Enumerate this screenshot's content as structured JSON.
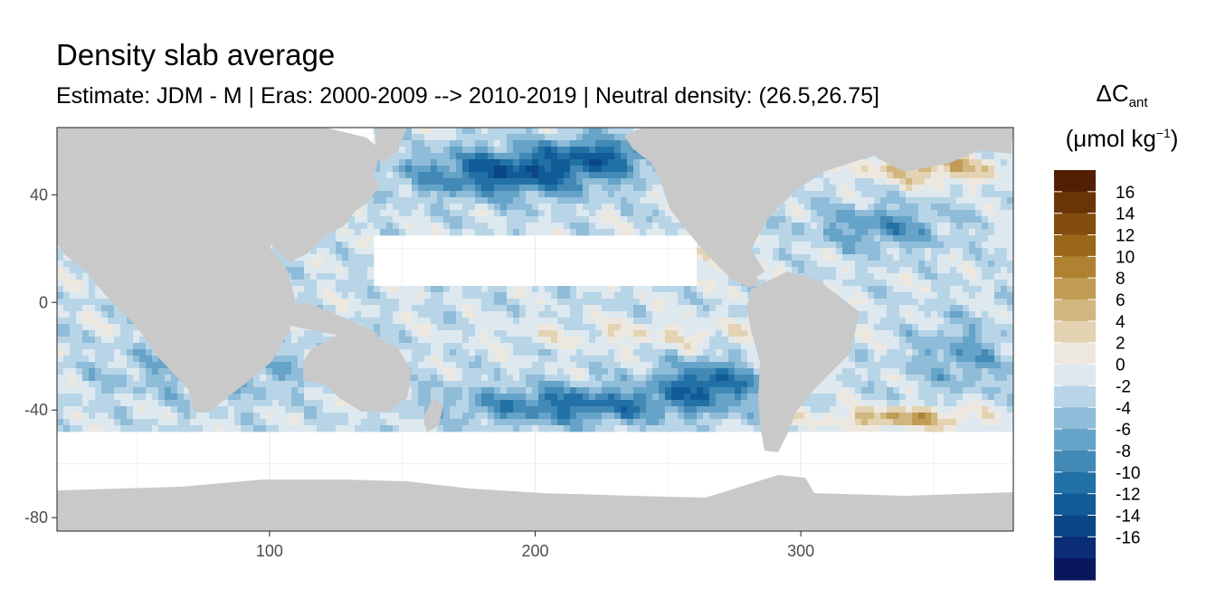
{
  "title": "Density slab average",
  "subtitle": "Estimate: JDM - M | Eras: 2000-2009 --> 2010-2019 | Neutral density: (26.5,26.75]",
  "legend": {
    "title_symbol": "ΔC",
    "title_sub": "ant",
    "unit_prefix": "(μmol kg",
    "unit_sup": "−1",
    "unit_suffix": ")"
  },
  "colors": {
    "land": "#c9c9c9",
    "ocean_empty": "#ffffff",
    "panel_border": "#333333",
    "grid": "#ebebeb"
  },
  "chart_data": {
    "type": "heatmap",
    "xlim": [
      20,
      380
    ],
    "ylim": [
      -85,
      65
    ],
    "x_ticks": [
      100,
      200,
      300
    ],
    "y_ticks": [
      40,
      0,
      -40,
      -80
    ],
    "grid": true,
    "legend_position": "right",
    "color_scale": {
      "breaks": [
        -18,
        -16,
        -14,
        -12,
        -10,
        -8,
        -6,
        -4,
        -2,
        0,
        2,
        4,
        6,
        8,
        10,
        12,
        14,
        16,
        18
      ],
      "labels": [
        "16",
        "14",
        "12",
        "10",
        "8",
        "6",
        "4",
        "2",
        "0",
        "-2",
        "-4",
        "-6",
        "-8",
        "-10",
        "-12",
        "-14",
        "-16"
      ],
      "colors_low_to_high": [
        "#08175e",
        "#0a2d75",
        "#0d4687",
        "#115c97",
        "#2271a6",
        "#4289b6",
        "#66a3c8",
        "#8fbcd8",
        "#b8d5e7",
        "#dee8ef",
        "#ede8df",
        "#e3d3b3",
        "#d2b67f",
        "#c09c55",
        "#ae8230",
        "#9a6617",
        "#824d0e",
        "#6a3406",
        "#521f05"
      ]
    }
  }
}
